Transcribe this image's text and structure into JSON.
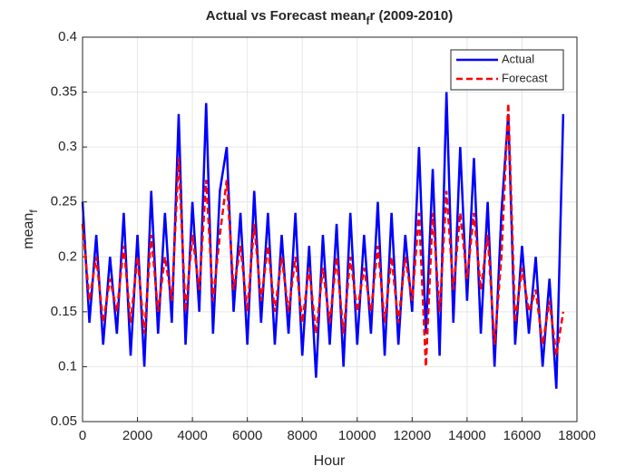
{
  "chart_data": {
    "type": "line",
    "title": [
      "Actual vs Forecast mean",
      "f",
      "r (2009-2010)"
    ],
    "x_label": "Hour",
    "y_label": [
      "mean",
      "f"
    ],
    "x": [
      0,
      250,
      500,
      750,
      1000,
      1250,
      1500,
      1750,
      2000,
      2250,
      2500,
      2750,
      3000,
      3250,
      3500,
      3750,
      4000,
      4250,
      4500,
      4750,
      5000,
      5250,
      5500,
      5750,
      6000,
      6250,
      6500,
      6750,
      7000,
      7250,
      7500,
      7750,
      8000,
      8250,
      8500,
      8750,
      9000,
      9250,
      9500,
      9750,
      10000,
      10250,
      10500,
      10750,
      11000,
      11250,
      11500,
      11750,
      12000,
      12250,
      12500,
      12750,
      13000,
      13250,
      13500,
      13750,
      14000,
      14250,
      14500,
      14750,
      15000,
      15250,
      15500,
      15750,
      16000,
      16250,
      16500,
      16750,
      17000,
      17250,
      17500
    ],
    "series": [
      {
        "name": "Actual",
        "color": "#0000ff",
        "dash": false,
        "values": [
          0.25,
          0.14,
          0.22,
          0.12,
          0.2,
          0.13,
          0.24,
          0.11,
          0.22,
          0.1,
          0.26,
          0.13,
          0.24,
          0.14,
          0.33,
          0.12,
          0.25,
          0.15,
          0.34,
          0.13,
          0.26,
          0.3,
          0.15,
          0.24,
          0.12,
          0.26,
          0.14,
          0.24,
          0.12,
          0.22,
          0.13,
          0.24,
          0.11,
          0.21,
          0.09,
          0.22,
          0.12,
          0.23,
          0.1,
          0.24,
          0.12,
          0.22,
          0.13,
          0.25,
          0.11,
          0.24,
          0.12,
          0.22,
          0.15,
          0.3,
          0.13,
          0.28,
          0.11,
          0.35,
          0.14,
          0.3,
          0.16,
          0.29,
          0.13,
          0.25,
          0.1,
          0.24,
          0.33,
          0.12,
          0.21,
          0.13,
          0.2,
          0.1,
          0.18,
          0.08,
          0.33
        ]
      },
      {
        "name": "Forecast",
        "color": "#ff0000",
        "dash": true,
        "values": [
          0.23,
          0.16,
          0.2,
          0.14,
          0.18,
          0.15,
          0.21,
          0.14,
          0.2,
          0.13,
          0.22,
          0.15,
          0.2,
          0.16,
          0.29,
          0.15,
          0.22,
          0.17,
          0.27,
          0.16,
          0.22,
          0.27,
          0.17,
          0.21,
          0.15,
          0.23,
          0.16,
          0.21,
          0.15,
          0.2,
          0.15,
          0.2,
          0.14,
          0.19,
          0.13,
          0.19,
          0.14,
          0.2,
          0.13,
          0.2,
          0.15,
          0.19,
          0.15,
          0.21,
          0.14,
          0.2,
          0.14,
          0.2,
          0.16,
          0.24,
          0.1,
          0.24,
          0.15,
          0.26,
          0.17,
          0.24,
          0.18,
          0.24,
          0.17,
          0.22,
          0.12,
          0.2,
          0.34,
          0.14,
          0.19,
          0.15,
          0.17,
          0.12,
          0.16,
          0.11,
          0.15
        ]
      }
    ],
    "xlim": [
      0,
      18000
    ],
    "xticks": [
      0,
      2000,
      4000,
      6000,
      8000,
      10000,
      12000,
      14000,
      16000,
      18000
    ],
    "ylim": [
      0.05,
      0.4
    ],
    "yticks": [
      0.05,
      0.1,
      0.15,
      0.2,
      0.25,
      0.3,
      0.35,
      0.4
    ],
    "grid": true,
    "legend": "top-right"
  }
}
